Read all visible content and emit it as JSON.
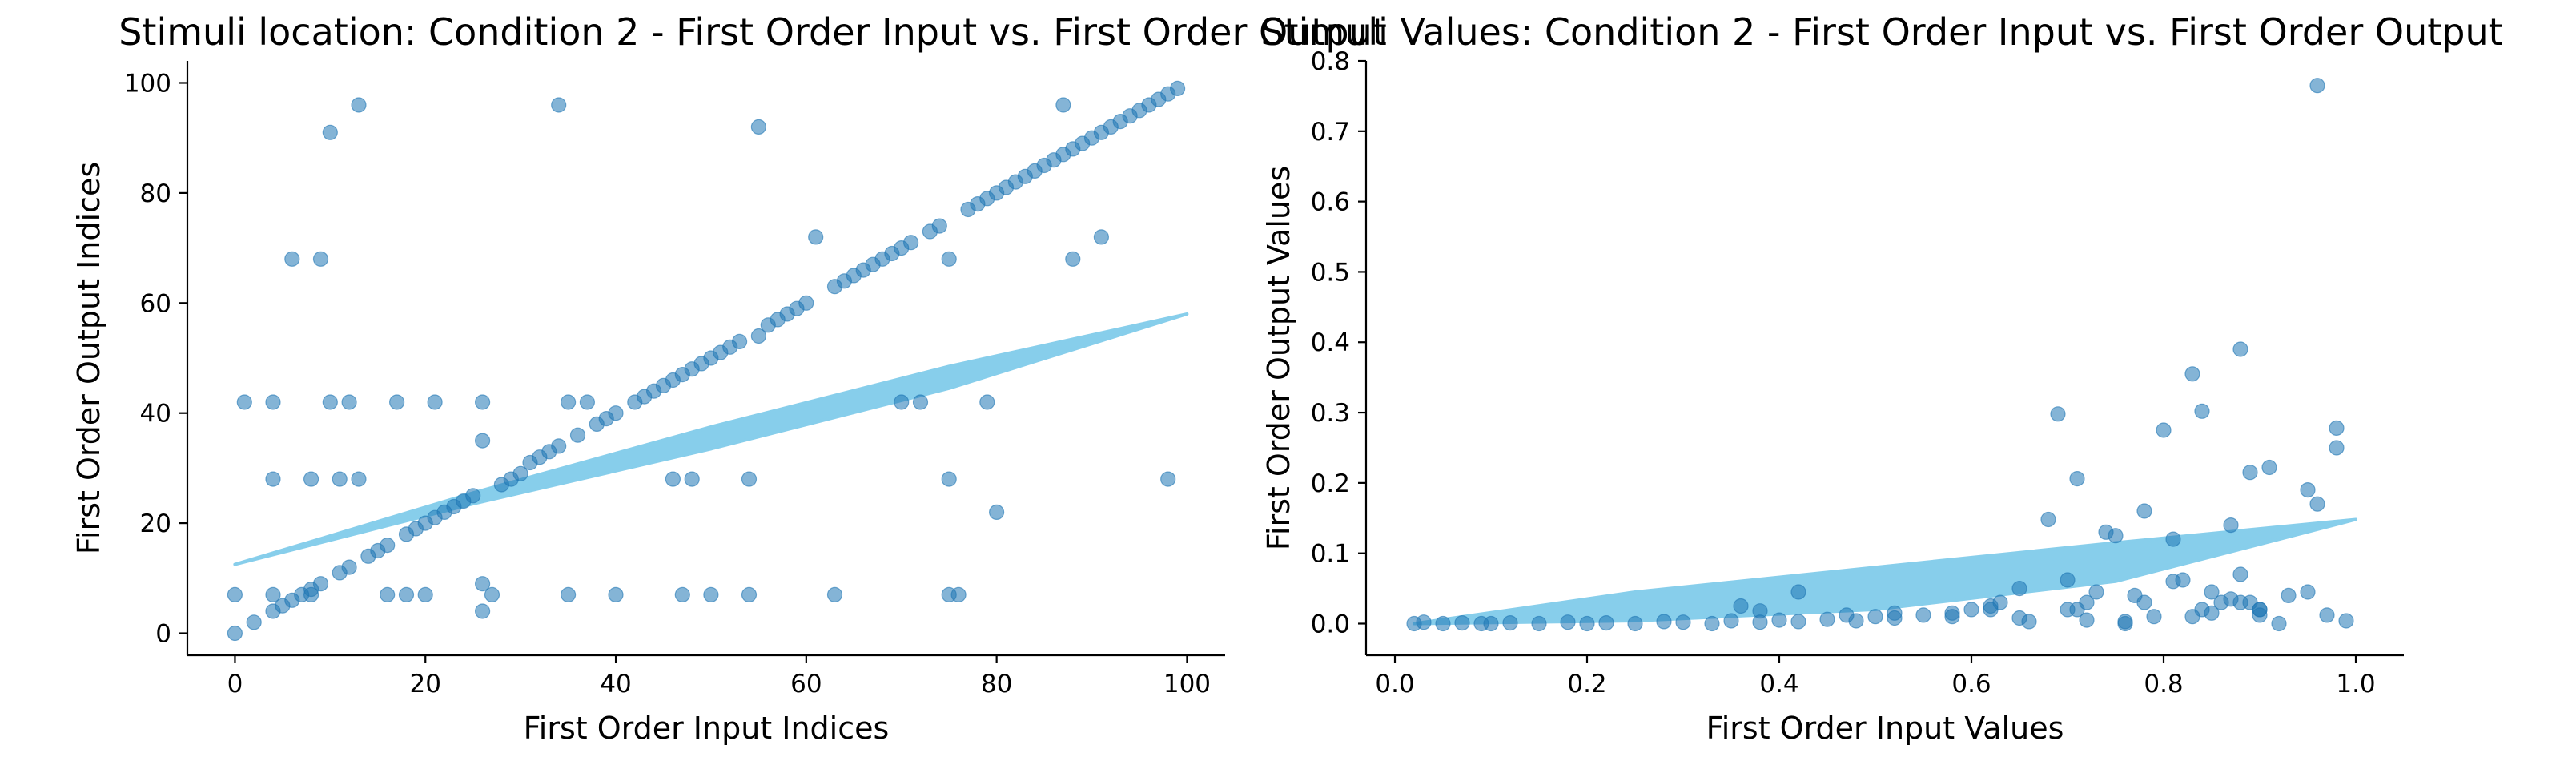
{
  "chart_data": [
    {
      "type": "scatter",
      "title": "Stimuli location: Condition 2 - First Order Input vs. First Order Output",
      "xlabel": "First Order Input Indices",
      "ylabel": "First Order Output Indices",
      "xlim": [
        -5,
        104
      ],
      "ylim": [
        -4,
        104
      ],
      "xticks": [
        0,
        20,
        40,
        60,
        80,
        100
      ],
      "yticks": [
        0,
        20,
        40,
        60,
        80,
        100
      ],
      "grid": false,
      "point_color": "#1f77b4",
      "point_alpha": 0.55,
      "fit_color": "#87ceeb",
      "points": {
        "x": [
          0,
          0,
          1,
          2,
          4,
          4,
          4,
          4,
          5,
          6,
          6,
          7,
          8,
          8,
          8,
          9,
          9,
          10,
          10,
          11,
          11,
          12,
          12,
          13,
          13,
          14,
          15,
          16,
          16,
          17,
          18,
          18,
          19,
          20,
          20,
          21,
          21,
          22,
          23,
          24,
          25,
          26,
          26,
          26,
          26,
          27,
          28,
          29,
          30,
          31,
          32,
          33,
          34,
          34,
          35,
          35,
          36,
          37,
          38,
          39,
          40,
          40,
          42,
          43,
          44,
          45,
          46,
          46,
          47,
          47,
          48,
          48,
          49,
          50,
          50,
          51,
          52,
          53,
          54,
          54,
          55,
          55,
          56,
          57,
          58,
          59,
          60,
          61,
          63,
          63,
          64,
          65,
          66,
          67,
          68,
          69,
          70,
          70,
          71,
          72,
          73,
          74,
          75,
          75,
          75,
          76,
          77,
          78,
          79,
          79,
          80,
          80,
          81,
          82,
          83,
          84,
          85,
          86,
          87,
          87,
          88,
          88,
          89,
          90,
          91,
          91,
          92,
          93,
          94,
          95,
          96,
          97,
          98,
          98,
          99
        ],
        "y": [
          0,
          7,
          42,
          2,
          4,
          7,
          28,
          42,
          5,
          6,
          68,
          7,
          7,
          28,
          8,
          9,
          68,
          91,
          42,
          11,
          28,
          12,
          42,
          96,
          28,
          14,
          15,
          16,
          7,
          42,
          18,
          7,
          19,
          20,
          7,
          21,
          42,
          22,
          23,
          24,
          25,
          4,
          9,
          35,
          42,
          7,
          27,
          28,
          29,
          31,
          32,
          33,
          34,
          96,
          42,
          7,
          36,
          42,
          38,
          39,
          40,
          7,
          42,
          43,
          44,
          45,
          46,
          28,
          47,
          7,
          48,
          28,
          49,
          50,
          7,
          51,
          52,
          53,
          28,
          7,
          54,
          92,
          56,
          57,
          58,
          59,
          60,
          72,
          63,
          7,
          64,
          65,
          66,
          67,
          68,
          69,
          70,
          42,
          71,
          42,
          73,
          74,
          7,
          28,
          68,
          7,
          77,
          78,
          79,
          42,
          22,
          80,
          81,
          82,
          83,
          84,
          85,
          86,
          87,
          96,
          88,
          68,
          89,
          90,
          91,
          72,
          92,
          93,
          94,
          95,
          96,
          97,
          98,
          28,
          99
        ]
      },
      "fit_band": {
        "x": [
          0,
          25,
          50,
          75,
          100
        ],
        "upper": [
          12.5,
          25.5,
          37.5,
          48.5,
          58
        ],
        "lower": [
          12.5,
          23.5,
          33.5,
          44.5,
          58
        ]
      }
    },
    {
      "type": "scatter",
      "title": "Stimuli Values: Condition 2 - First Order Input vs. First Order Output",
      "xlabel": "First Order Input Values",
      "ylabel": "First Order Output Values",
      "xlim": [
        -0.03,
        1.05
      ],
      "ylim": [
        -0.045,
        0.8
      ],
      "xticks": [
        0.0,
        0.2,
        0.4,
        0.6,
        0.8,
        1.0
      ],
      "yticks": [
        0.0,
        0.1,
        0.2,
        0.3,
        0.4,
        0.5,
        0.6,
        0.7,
        0.8
      ],
      "grid": false,
      "point_color": "#1f77b4",
      "point_alpha": 0.55,
      "fit_color": "#87ceeb",
      "points": {
        "x": [
          0.02,
          0.03,
          0.05,
          0.07,
          0.09,
          0.1,
          0.12,
          0.15,
          0.18,
          0.2,
          0.22,
          0.25,
          0.28,
          0.3,
          0.33,
          0.35,
          0.38,
          0.4,
          0.42,
          0.45,
          0.48,
          0.5,
          0.52,
          0.55,
          0.58,
          0.6,
          0.62,
          0.63,
          0.65,
          0.66,
          0.68,
          0.69,
          0.7,
          0.7,
          0.71,
          0.72,
          0.73,
          0.74,
          0.75,
          0.76,
          0.77,
          0.78,
          0.79,
          0.8,
          0.81,
          0.82,
          0.83,
          0.84,
          0.85,
          0.86,
          0.87,
          0.88,
          0.88,
          0.89,
          0.9,
          0.9,
          0.91,
          0.92,
          0.93,
          0.95,
          0.95,
          0.96,
          0.96,
          0.97,
          0.98,
          0.98,
          0.99,
          0.71,
          0.72,
          0.76,
          0.78,
          0.81,
          0.83,
          0.84,
          0.85,
          0.87,
          0.88,
          0.9,
          0.89,
          0.62,
          0.65,
          0.58,
          0.52,
          0.47,
          0.42,
          0.38,
          0.36
        ],
        "y": [
          0.0,
          0.002,
          0.0,
          0.001,
          0.0,
          0.0,
          0.001,
          0.0,
          0.002,
          0.0,
          0.001,
          0.0,
          0.003,
          0.002,
          0.0,
          0.004,
          0.002,
          0.005,
          0.003,
          0.006,
          0.004,
          0.01,
          0.008,
          0.012,
          0.015,
          0.02,
          0.025,
          0.03,
          0.05,
          0.003,
          0.148,
          0.298,
          0.02,
          0.062,
          0.206,
          0.03,
          0.045,
          0.13,
          0.125,
          0.003,
          0.04,
          0.16,
          0.01,
          0.275,
          0.12,
          0.062,
          0.355,
          0.302,
          0.015,
          0.03,
          0.14,
          0.39,
          0.07,
          0.215,
          0.012,
          0.02,
          0.222,
          0.0,
          0.04,
          0.19,
          0.045,
          0.765,
          0.17,
          0.012,
          0.278,
          0.25,
          0.004,
          0.02,
          0.005,
          0.0,
          0.03,
          0.06,
          0.01,
          0.02,
          0.045,
          0.035,
          0.03,
          0.02,
          0.03,
          0.02,
          0.008,
          0.01,
          0.015,
          0.012,
          0.045,
          0.018,
          0.025
        ]
      },
      "fit_band": {
        "x": [
          0.02,
          0.25,
          0.5,
          0.75,
          1.0
        ],
        "upper": [
          0.0,
          0.045,
          0.08,
          0.115,
          0.148
        ],
        "lower": [
          0.0,
          0.004,
          0.02,
          0.06,
          0.148
        ]
      }
    }
  ]
}
